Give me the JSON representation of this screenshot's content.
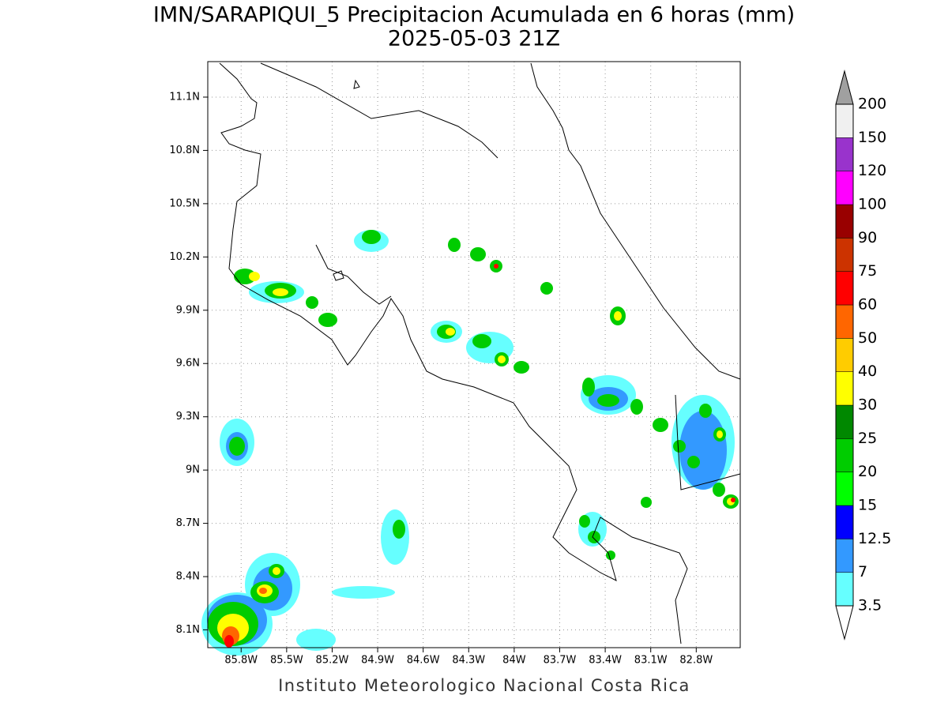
{
  "title": "IMN/SARAPIQUI_5 Precipitacion Acumulada en 6 horas (mm)",
  "subtitle": "2025-05-03 21Z",
  "credit": "Instituto Meteorologico Nacional Costa Rica",
  "map": {
    "lat_range": [
      8.0,
      11.3
    ],
    "lon_range": [
      -86.02,
      -82.51
    ],
    "lat_ticks": [
      {
        "value": 8.1,
        "label": "8.1N"
      },
      {
        "value": 8.4,
        "label": "8.4N"
      },
      {
        "value": 8.7,
        "label": "8.7N"
      },
      {
        "value": 9.0,
        "label": "9N"
      },
      {
        "value": 9.3,
        "label": "9.3N"
      },
      {
        "value": 9.6,
        "label": "9.6N"
      },
      {
        "value": 9.9,
        "label": "9.9N"
      },
      {
        "value": 10.2,
        "label": "10.2N"
      },
      {
        "value": 10.5,
        "label": "10.5N"
      },
      {
        "value": 10.8,
        "label": "10.8N"
      },
      {
        "value": 11.1,
        "label": "11.1N"
      }
    ],
    "lon_ticks": [
      {
        "value": -85.8,
        "label": "85.8W"
      },
      {
        "value": -85.5,
        "label": "85.5W"
      },
      {
        "value": -85.2,
        "label": "85.2W"
      },
      {
        "value": -84.9,
        "label": "84.9W"
      },
      {
        "value": -84.6,
        "label": "84.6W"
      },
      {
        "value": -84.3,
        "label": "84.3W"
      },
      {
        "value": -84.0,
        "label": "84W"
      },
      {
        "value": -83.7,
        "label": "83.7W"
      },
      {
        "value": -83.4,
        "label": "83.4W"
      },
      {
        "value": -83.1,
        "label": "83.1W"
      },
      {
        "value": -82.8,
        "label": "82.8W"
      }
    ],
    "grid": true
  },
  "colorbar": {
    "levels": [
      3.5,
      7,
      12.5,
      15,
      20,
      25,
      30,
      40,
      50,
      60,
      75,
      90,
      100,
      120,
      150,
      200
    ],
    "colors": [
      "#ffffff",
      "#66ffff",
      "#3399ff",
      "#0000ff",
      "#00ff00",
      "#00cc00",
      "#008800",
      "#ffff00",
      "#ffcc00",
      "#ff6600",
      "#ff0000",
      "#cc3300",
      "#990000",
      "#ff00ff",
      "#9933cc",
      "#f0f0f0",
      "#a0a0a0"
    ]
  }
}
